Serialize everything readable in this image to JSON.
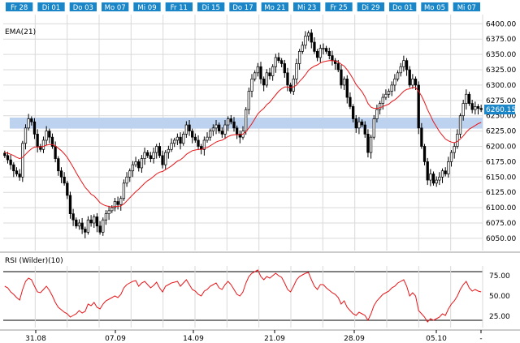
{
  "chart_data": [
    {
      "type": "candlestick",
      "title": "",
      "date_tabs": [
        "Fr 28",
        "Di 01",
        "Do 03",
        "Mo 07",
        "Mi 09",
        "Fr 11",
        "Di 15",
        "Do 17",
        "Mo 21",
        "Mi 23",
        "Fr 25",
        "Di 29",
        "Do 01",
        "Mo 05",
        "Mi 07"
      ],
      "xaxis_ticks": [
        "31.08",
        "07.09",
        "14.09",
        "21.09",
        "28.09",
        "05.10",
        "-"
      ],
      "ylim": [
        6030,
        6415
      ],
      "yticks": [
        6050,
        6075,
        6100,
        6125,
        6150,
        6175,
        6200,
        6225,
        6250,
        6275,
        6300,
        6325,
        6350,
        6375,
        6400
      ],
      "grid": true,
      "axis_position": "right",
      "support_band": [
        6229,
        6247
      ],
      "last_price_label": "6260.15",
      "ema_label": "EMA(21)",
      "series": [
        {
          "name": "price",
          "close": [
            6185,
            6178,
            6170,
            6160,
            6155,
            6150,
            6205,
            6230,
            6245,
            6240,
            6220,
            6200,
            6195,
            6210,
            6225,
            6215,
            6200,
            6180,
            6160,
            6150,
            6140,
            6120,
            6090,
            6080,
            6070,
            6075,
            6065,
            6060,
            6080,
            6075,
            6085,
            6070,
            6060,
            6080,
            6090,
            6095,
            6100,
            6110,
            6105,
            6115,
            6140,
            6150,
            6160,
            6170,
            6175,
            6165,
            6180,
            6190,
            6185,
            6180,
            6190,
            6200,
            6185,
            6170,
            6190,
            6195,
            6205,
            6210,
            6215,
            6205,
            6220,
            6235,
            6225,
            6215,
            6210,
            6200,
            6195,
            6210,
            6215,
            6225,
            6230,
            6235,
            6225,
            6220,
            6235,
            6245,
            6240,
            6230,
            6220,
            6215,
            6225,
            6260,
            6290,
            6310,
            6320,
            6330,
            6310,
            6300,
            6320,
            6315,
            6330,
            6345,
            6340,
            6335,
            6320,
            6300,
            6290,
            6310,
            6335,
            6355,
            6365,
            6380,
            6385,
            6370,
            6355,
            6345,
            6360,
            6360,
            6355,
            6348,
            6340,
            6335,
            6325,
            6300,
            6310,
            6280,
            6265,
            6245,
            6230,
            6240,
            6235,
            6220,
            6190,
            6215,
            6245,
            6260,
            6270,
            6280,
            6285,
            6290,
            6300,
            6310,
            6320,
            6330,
            6340,
            6325,
            6300,
            6310,
            6300,
            6230,
            6200,
            6175,
            6145,
            6155,
            6140,
            6145,
            6150,
            6160,
            6155,
            6175,
            6190,
            6200,
            6220,
            6250,
            6270,
            6285,
            6270,
            6260,
            6265,
            6262,
            6260
          ]
        },
        {
          "name": "EMA(21)",
          "values": [
            6190,
            6189,
            6187,
            6185,
            6182,
            6180,
            6182,
            6187,
            6192,
            6196,
            6199,
            6199,
            6199,
            6200,
            6202,
            6203,
            6203,
            6201,
            6197,
            6193,
            6188,
            6182,
            6174,
            6166,
            6157,
            6149,
            6141,
            6133,
            6128,
            6122,
            6119,
            6114,
            6108,
            6105,
            6103,
            6102,
            6101,
            6102,
            6102,
            6103,
            6106,
            6111,
            6116,
            6121,
            6126,
            6130,
            6135,
            6140,
            6144,
            6147,
            6151,
            6155,
            6158,
            6159,
            6162,
            6165,
            6168,
            6172,
            6176,
            6178,
            6182,
            6187,
            6190,
            6193,
            6194,
            6195,
            6195,
            6197,
            6198,
            6201,
            6204,
            6207,
            6209,
            6210,
            6213,
            6216,
            6218,
            6219,
            6219,
            6219,
            6220,
            6224,
            6230,
            6237,
            6245,
            6253,
            6258,
            6262,
            6268,
            6272,
            6278,
            6284,
            6290,
            6294,
            6297,
            6297,
            6296,
            6297,
            6300,
            6306,
            6311,
            6317,
            6324,
            6328,
            6331,
            6333,
            6336,
            6338,
            6339,
            6340,
            6340,
            6339,
            6338,
            6334,
            6331,
            6325,
            6318,
            6310,
            6301,
            6295,
            6289,
            6281,
            6270,
            6264,
            6262,
            6262,
            6263,
            6265,
            6267,
            6269,
            6273,
            6276,
            6280,
            6285,
            6290,
            6293,
            6294,
            6296,
            6296,
            6290,
            6282,
            6272,
            6260,
            6250,
            6240,
            6232,
            6224,
            6218,
            6212,
            6209,
            6207,
            6206,
            6208,
            6212,
            6217,
            6223,
            6228,
            6231,
            6234,
            6237,
            6239
          ]
        }
      ]
    },
    {
      "type": "line",
      "title": "RSI (Wilder)(10)",
      "ylim": [
        15,
        85
      ],
      "yticks": [
        25.0,
        50.0,
        75.0
      ],
      "reference_lines": [
        20,
        80
      ],
      "series": [
        {
          "name": "RSI (Wilder)(10)",
          "values": [
            62,
            60,
            55,
            52,
            48,
            45,
            58,
            68,
            72,
            70,
            62,
            55,
            54,
            58,
            62,
            57,
            50,
            42,
            36,
            33,
            30,
            28,
            24,
            26,
            28,
            32,
            29,
            31,
            40,
            38,
            42,
            36,
            34,
            40,
            44,
            46,
            48,
            50,
            48,
            52,
            60,
            64,
            66,
            68,
            69,
            62,
            66,
            68,
            64,
            60,
            63,
            67,
            60,
            55,
            62,
            64,
            66,
            67,
            68,
            62,
            66,
            70,
            64,
            58,
            56,
            52,
            50,
            56,
            58,
            62,
            64,
            66,
            60,
            58,
            64,
            68,
            64,
            58,
            52,
            50,
            55,
            66,
            74,
            78,
            80,
            82,
            74,
            70,
            74,
            72,
            75,
            78,
            75,
            73,
            66,
            58,
            55,
            62,
            70,
            74,
            76,
            78,
            79,
            70,
            62,
            58,
            64,
            64,
            60,
            57,
            54,
            52,
            48,
            40,
            44,
            36,
            32,
            28,
            26,
            30,
            28,
            26,
            20,
            28,
            38,
            44,
            48,
            52,
            54,
            56,
            60,
            62,
            66,
            68,
            70,
            62,
            50,
            54,
            50,
            32,
            28,
            24,
            18,
            22,
            20,
            22,
            24,
            28,
            26,
            34,
            40,
            44,
            50,
            58,
            64,
            68,
            60,
            56,
            58,
            56,
            55
          ]
        }
      ]
    }
  ],
  "axis_labels": {
    "y_ticks_text": [
      "6400.00",
      "6375.00",
      "6350.00",
      "6325.00",
      "6300.00",
      "6275.00",
      "6250.00",
      "6225.00",
      "6200.00",
      "6175.00",
      "6150.00",
      "6125.00",
      "6100.00",
      "6075.00",
      "6050.00"
    ],
    "rsi_ticks_text": [
      "75.00",
      "50.00",
      "25.00"
    ]
  },
  "colors": {
    "tab_bg": "#1a86c8",
    "tab_text": "#ffffff",
    "candle_up": "#ffffff",
    "candle_down": "#000000",
    "ema_line": "#e8161a",
    "rsi_line": "#e8161a",
    "band": "#bcd2ee",
    "grid": "#d9d9d9",
    "price_label_bg": "#1a86c8"
  }
}
